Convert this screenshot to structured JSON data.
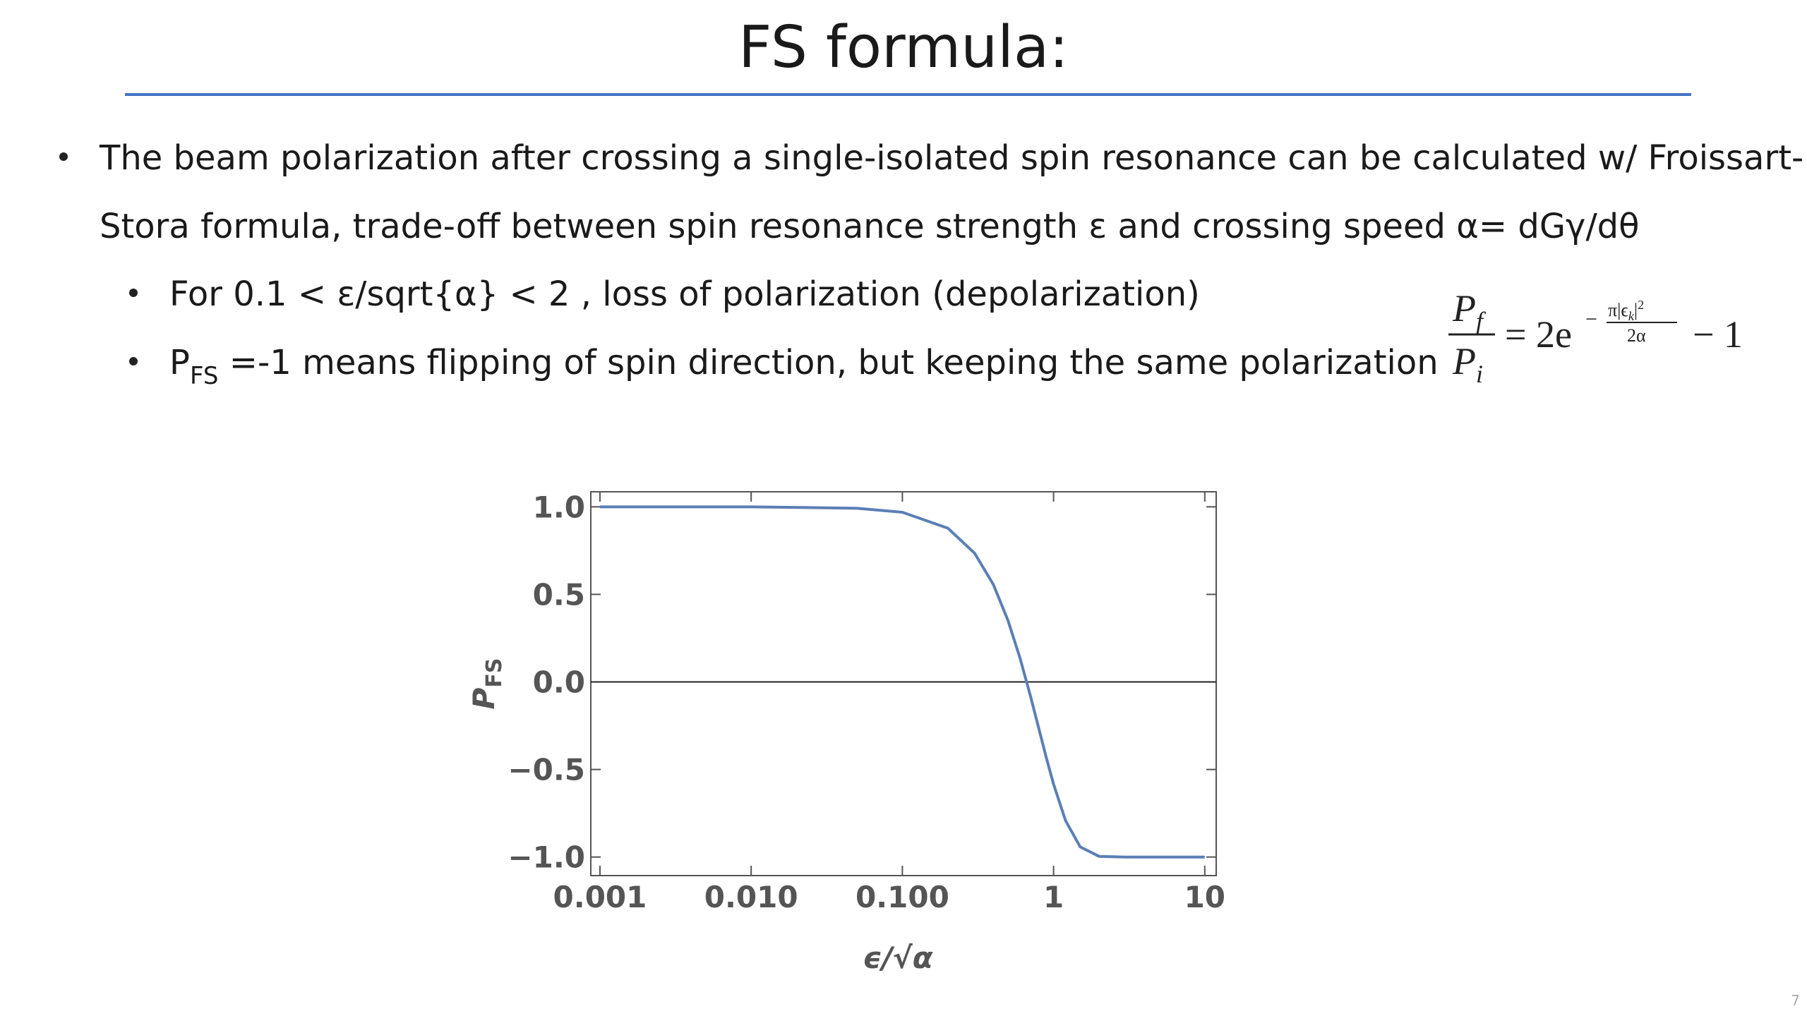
{
  "header": {
    "title": "FS formula:"
  },
  "bullets": [
    {
      "lines": [
        "The beam polarization after crossing a single-isolated spin resonance can be calculated w/ Froissart-",
        "Stora formula, trade-off between spin resonance strength ε and crossing speed α= dGγ/dθ"
      ]
    },
    {
      "text": "For 0.1 < ε/sqrt{α}  < 2 , loss of polarization (depolarization)"
    },
    {
      "main": "P",
      "sub": "FS",
      "rest": " =-1 means flipping of spin direction, but keeping the same polarization"
    }
  ],
  "formula": {
    "num": "P",
    "num_sub": "f",
    "den": "P",
    "den_sub": "i",
    "rhs": "= 2e",
    "exp_sign": "−",
    "exp_num": "π|ϵ",
    "exp_num_sub": "k",
    "exp_num_close": "|",
    "exp_num_sup": "2",
    "exp_den": "2α",
    "tail": "− 1"
  },
  "chart_data": {
    "type": "line",
    "x_label": "ϵ/√α",
    "y_label": "P",
    "y_label_sub": "FS",
    "x": [
      0.001,
      0.01,
      0.05,
      0.1,
      0.2,
      0.3,
      0.4,
      0.5,
      0.6,
      0.7,
      0.8,
      0.9,
      1.0,
      1.2,
      1.5,
      2,
      3,
      5,
      10
    ],
    "values": [
      1.0,
      1.0,
      0.992,
      0.969,
      0.878,
      0.736,
      0.556,
      0.35,
      0.136,
      -0.074,
      -0.268,
      -0.44,
      -0.584,
      -0.792,
      -0.942,
      -0.996,
      -1.0,
      -1.0,
      -1.0
    ],
    "color": "#5a7fb5",
    "xscale": "log",
    "xlim": [
      0.00087,
      11.9
    ],
    "ylim": [
      -1.106,
      1.086
    ],
    "xticks": [
      0.001,
      {
        "value": 0.01,
        "label": "0.010"
      },
      {
        "value": 0.1,
        "label": "0.100"
      },
      1,
      10
    ],
    "yticks": [
      {
        "value": 1,
        "label": "1.0"
      },
      {
        "value": 0.5,
        "label": "0.5"
      },
      {
        "value": 0,
        "label": "0.0"
      },
      {
        "value": -0.5,
        "label": "−0.5"
      },
      {
        "value": -1,
        "label": "−1.0"
      }
    ]
  },
  "page_number": "7"
}
